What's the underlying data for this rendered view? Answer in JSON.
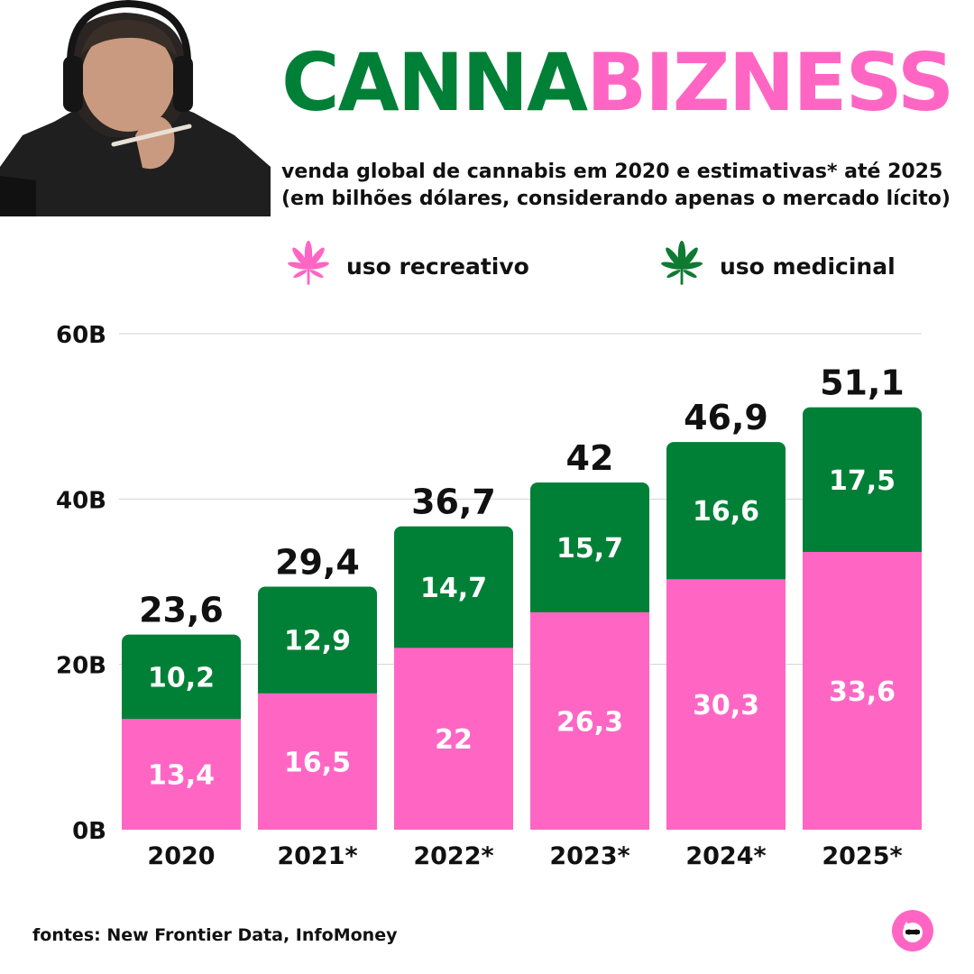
{
  "header": {
    "title_part1": "CANNA",
    "title_part2": "BIZNESS",
    "subtitle_line1": "venda global de cannabis em 2020 e estimativas* até 2025",
    "subtitle_line2": "(em bilhões dólares, considerando apenas o mercado lícito)"
  },
  "legend": {
    "recreational": {
      "label": "uso recreativo",
      "icon": "cannabis-leaf-icon",
      "color": "#ff66c4"
    },
    "medicinal": {
      "label": "uso medicinal",
      "icon": "cannabis-leaf-icon",
      "color": "#008037"
    }
  },
  "chart_data": {
    "type": "bar",
    "stacked": true,
    "categories": [
      "2020",
      "2021*",
      "2022*",
      "2023*",
      "2024*",
      "2025*"
    ],
    "series": [
      {
        "name": "uso recreativo",
        "color": "#ff66c4",
        "values": [
          13.4,
          16.5,
          22,
          26.3,
          30.3,
          33.6
        ],
        "labels": [
          "13,4",
          "16,5",
          "22",
          "26,3",
          "30,3",
          "33,6"
        ]
      },
      {
        "name": "uso medicinal",
        "color": "#008037",
        "values": [
          10.2,
          12.9,
          14.7,
          15.7,
          16.6,
          17.5
        ],
        "labels": [
          "10,2",
          "12,9",
          "14,7",
          "15,7",
          "16,6",
          "17,5"
        ]
      }
    ],
    "totals": [
      23.6,
      29.4,
      36.7,
      42,
      46.9,
      51.1
    ],
    "total_labels": [
      "23,6",
      "29,4",
      "36,7",
      "42",
      "46,9",
      "51,1"
    ],
    "y_ticks": [
      0,
      20,
      40,
      60
    ],
    "y_tick_labels": [
      "0B",
      "20B",
      "40B",
      "60B"
    ],
    "ylim": [
      0,
      60
    ],
    "grid": true
  },
  "footer": {
    "sources": "fontes: New Frontier Data, InfoMoney"
  }
}
